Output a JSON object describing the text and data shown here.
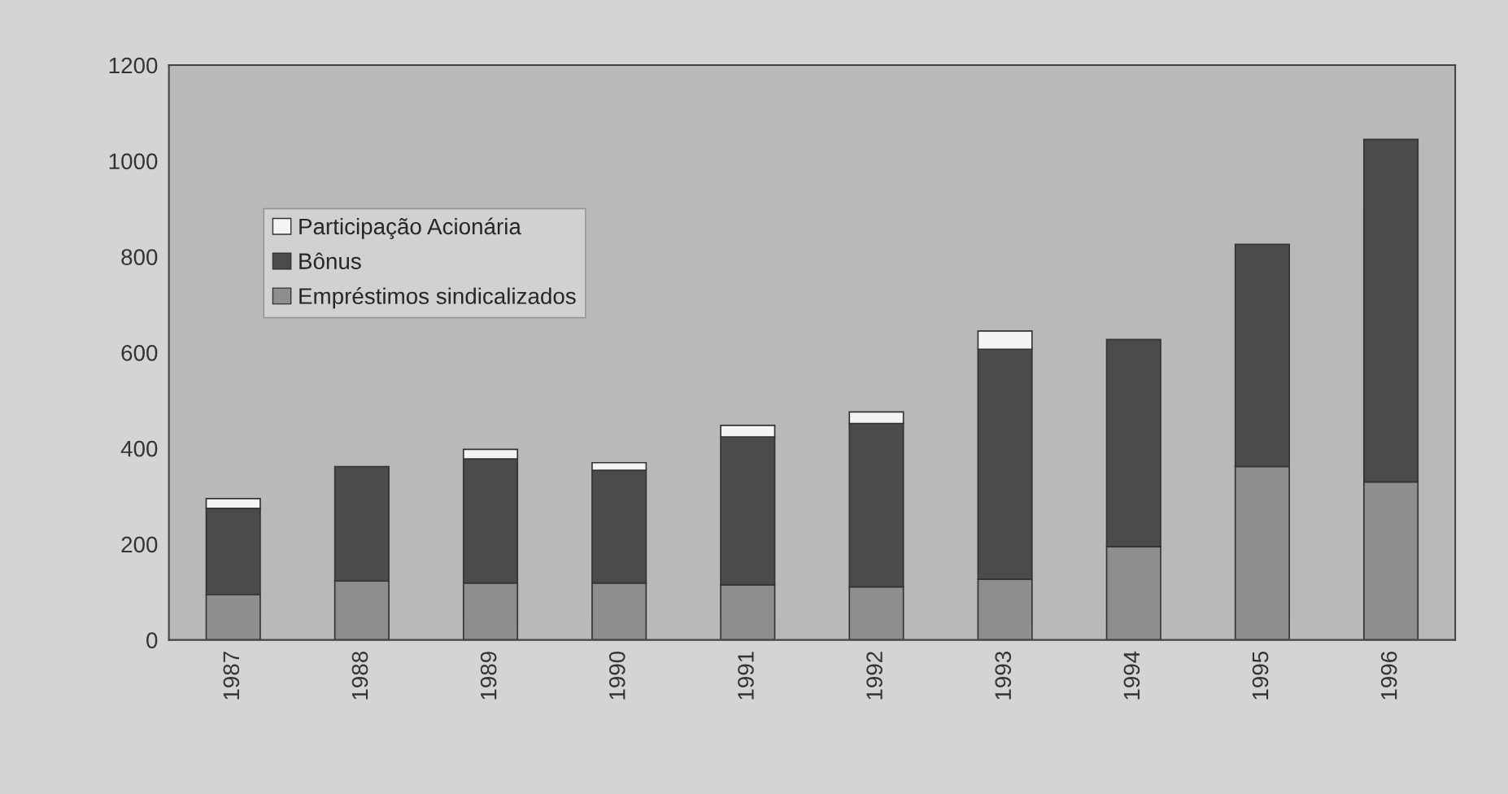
{
  "chart_data": {
    "type": "bar",
    "stacked": true,
    "categories": [
      "1987",
      "1988",
      "1989",
      "1990",
      "1991",
      "1992",
      "1993",
      "1994",
      "1995",
      "1996"
    ],
    "series": [
      {
        "name": "Empréstimos sindicalizados",
        "color": "#8e8e8e",
        "values": [
          95,
          123,
          119,
          119,
          115,
          111,
          127,
          195,
          362,
          330
        ]
      },
      {
        "name": "Bônus",
        "color": "#4b4b4b",
        "values": [
          180,
          239,
          259,
          235,
          309,
          341,
          480,
          432,
          464,
          715
        ]
      },
      {
        "name": "Participação Acionária",
        "color": "#f4f4f4",
        "values": [
          20,
          null,
          20,
          16,
          24,
          24,
          38,
          null,
          null,
          null
        ]
      }
    ],
    "ylim": [
      0,
      1200
    ],
    "yticks": [
      0,
      200,
      400,
      600,
      800,
      1000,
      1200
    ],
    "legend": "top left",
    "grid": false
  }
}
